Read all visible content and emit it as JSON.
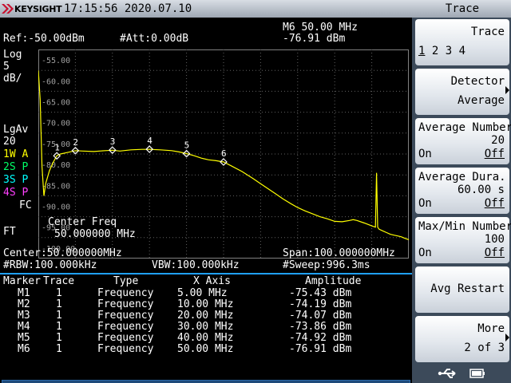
{
  "header": {
    "brand": "KEYSIGHT",
    "datetime": "17:15:56 2020.07.10",
    "panel_title": "Trace"
  },
  "screen": {
    "ref": "Ref:-50.00dBm",
    "att": "#Att:0.00dB",
    "marker_readout_freq": "M6 50.00 MHz",
    "marker_readout_amp": "-76.91 dBm",
    "scale_type": "Log",
    "scale_div": "5",
    "scale_unit": "dB/",
    "avg_mode": "LgAv",
    "avg_count": "20",
    "traces": [
      {
        "label": "1W",
        "mode": "A",
        "color": "#ffff00"
      },
      {
        "label": "2S",
        "mode": "P",
        "color": "#00ff66"
      },
      {
        "label": "3S",
        "mode": "P",
        "color": "#00ffff"
      },
      {
        "label": "4S",
        "mode": "P",
        "color": "#ff40ff"
      }
    ],
    "fc": "FC",
    "ft": "FT",
    "y_ticks": [
      "-55.00",
      "-60.00",
      "-65.00",
      "-70.00",
      "-75.00",
      "-80.00",
      "-85.00",
      "-90.00",
      "-95.00",
      "-100.00"
    ],
    "overlay_title": "Center Freq",
    "overlay_value": "50.000000 MHz",
    "center": "Center:50.000000MHz",
    "span": "Span:100.000000MHz",
    "rbw": "#RBW:100.000kHz",
    "vbw": "VBW:100.000kHz",
    "sweep": "#Sweep:996.3ms"
  },
  "marker_table": {
    "headers": [
      "Marker",
      "Trace",
      "Type",
      "X Axis",
      "Amplitude"
    ],
    "rows": [
      {
        "marker": "M1",
        "trace": "1",
        "type": "Frequency",
        "x": "5.00 MHz",
        "amp": "-75.43 dBm"
      },
      {
        "marker": "M2",
        "trace": "1",
        "type": "Frequency",
        "x": "10.00 MHz",
        "amp": "-74.19 dBm"
      },
      {
        "marker": "M3",
        "trace": "1",
        "type": "Frequency",
        "x": "20.00 MHz",
        "amp": "-74.07 dBm"
      },
      {
        "marker": "M4",
        "trace": "1",
        "type": "Frequency",
        "x": "30.00 MHz",
        "amp": "-73.86 dBm"
      },
      {
        "marker": "M5",
        "trace": "1",
        "type": "Frequency",
        "x": "40.00 MHz",
        "amp": "-74.92 dBm"
      },
      {
        "marker": "M6",
        "trace": "1",
        "type": "Frequency",
        "x": "50.00 MHz",
        "amp": "-76.91 dBm"
      }
    ]
  },
  "softkeys": {
    "trace": {
      "title": "Trace",
      "items": [
        "1",
        "2",
        "3",
        "4"
      ],
      "selected": "1"
    },
    "detector": {
      "title": "Detector",
      "value": "Average"
    },
    "avg_number": {
      "title": "Average Number",
      "value": "20",
      "on": "On",
      "off": "Off"
    },
    "avg_duration": {
      "title": "Average Dura.",
      "value": "60.00 s",
      "on": "On",
      "off": "Off"
    },
    "maxmin_number": {
      "title": "Max/Min Number",
      "value": "100",
      "on": "On",
      "off": "Off"
    },
    "avg_restart": {
      "title": "Avg Restart"
    },
    "more": {
      "title": "More",
      "page": "2 of 3"
    }
  },
  "icons": [
    "usb-icon",
    "battery-icon"
  ],
  "colors": {
    "trace": "#ffff00",
    "grid": "#808080",
    "accent": "#20a0ff"
  },
  "chart_data": {
    "type": "line",
    "xlabel": "",
    "ylabel": "",
    "xlim": [
      0,
      100
    ],
    "ylim": [
      -100,
      -50
    ],
    "grid": true,
    "series": [
      {
        "x": [
          0,
          0.5,
          1,
          1.5,
          2,
          3,
          4,
          5,
          6,
          8,
          10,
          12,
          15,
          18,
          20,
          22,
          25,
          28,
          30,
          33,
          36,
          38,
          40,
          42,
          44,
          46,
          48,
          50,
          52,
          55,
          58,
          60,
          62,
          64,
          66,
          68,
          70,
          72,
          74,
          76,
          78,
          80,
          82,
          84,
          85,
          86,
          88,
          90,
          91,
          91.3,
          91.6,
          92,
          93,
          94,
          95,
          96,
          97,
          98,
          99,
          100
        ],
        "y": [
          -55,
          -62,
          -78,
          -85,
          -82,
          -79,
          -77,
          -75.4,
          -75,
          -74.6,
          -74.2,
          -74.3,
          -74.4,
          -74.2,
          -74.1,
          -74.3,
          -74.0,
          -73.9,
          -73.9,
          -74.0,
          -74.2,
          -74.5,
          -74.9,
          -75.4,
          -76.0,
          -76.4,
          -76.6,
          -76.9,
          -77.8,
          -79.2,
          -80.9,
          -82.1,
          -83.3,
          -84.5,
          -85.7,
          -86.8,
          -87.8,
          -88.6,
          -89.3,
          -90.0,
          -90.5,
          -91.1,
          -91.2,
          -90.9,
          -90.7,
          -90.9,
          -91.5,
          -92.2,
          -92.5,
          -79.5,
          -92.5,
          -93.0,
          -93.4,
          -93.8,
          -94.2,
          -94.4,
          -94.6,
          -94.8,
          -95.2,
          -95.5
        ]
      }
    ],
    "markers": [
      {
        "label": "1",
        "x": 5,
        "y": -75.43
      },
      {
        "label": "2",
        "x": 10,
        "y": -74.19
      },
      {
        "label": "3",
        "x": 20,
        "y": -74.07
      },
      {
        "label": "4",
        "x": 30,
        "y": -73.86
      },
      {
        "label": "5",
        "x": 40,
        "y": -74.92
      },
      {
        "label": "6",
        "x": 50,
        "y": -76.91
      }
    ]
  }
}
